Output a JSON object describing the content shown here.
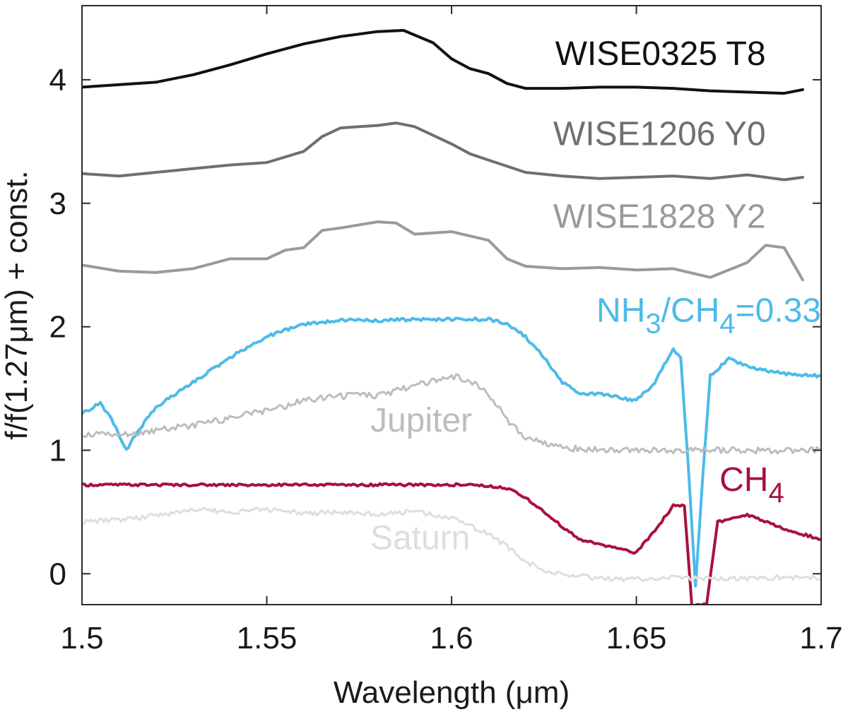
{
  "chart_data": {
    "type": "line",
    "xlabel": "Wavelength (μm)",
    "ylabel": "f/f(1.27μm) + const.",
    "xlim": [
      1.5,
      1.7
    ],
    "ylim": [
      -0.25,
      4.6
    ],
    "x_ticks": [
      1.5,
      1.55,
      1.6,
      1.65,
      1.7
    ],
    "x_tick_labels": [
      "1.5",
      "1.55",
      "1.6",
      "1.65",
      "1.7"
    ],
    "y_ticks": [
      0,
      1,
      2,
      3,
      4
    ],
    "y_tick_labels": [
      "0",
      "1",
      "2",
      "3",
      "4"
    ],
    "grid": false,
    "series": [
      {
        "name": "WISE0325 T8",
        "label_parts": [
          {
            "text": "WISE0325 T8"
          }
        ],
        "label_anchor": [
          1.685,
          4.12
        ],
        "color": "#111111",
        "x": [
          1.5,
          1.51,
          1.52,
          1.53,
          1.54,
          1.55,
          1.56,
          1.57,
          1.58,
          1.587,
          1.595,
          1.6,
          1.605,
          1.61,
          1.615,
          1.62,
          1.63,
          1.64,
          1.65,
          1.66,
          1.67,
          1.68,
          1.69,
          1.695
        ],
        "y": [
          3.94,
          3.96,
          3.98,
          4.04,
          4.12,
          4.21,
          4.29,
          4.35,
          4.39,
          4.4,
          4.3,
          4.17,
          4.09,
          4.05,
          3.97,
          3.93,
          3.93,
          3.94,
          3.94,
          3.93,
          3.91,
          3.9,
          3.89,
          3.92
        ]
      },
      {
        "name": "WISE1206 Y0",
        "label_parts": [
          {
            "text": "WISE1206 Y0"
          }
        ],
        "label_anchor": [
          1.685,
          3.47
        ],
        "color": "#6f6f6f",
        "x": [
          1.5,
          1.51,
          1.52,
          1.53,
          1.54,
          1.55,
          1.56,
          1.565,
          1.57,
          1.58,
          1.585,
          1.59,
          1.6,
          1.605,
          1.61,
          1.62,
          1.63,
          1.64,
          1.65,
          1.66,
          1.67,
          1.68,
          1.69,
          1.695
        ],
        "y": [
          3.24,
          3.22,
          3.25,
          3.28,
          3.31,
          3.33,
          3.42,
          3.54,
          3.61,
          3.63,
          3.65,
          3.62,
          3.48,
          3.4,
          3.35,
          3.25,
          3.22,
          3.2,
          3.21,
          3.22,
          3.2,
          3.23,
          3.19,
          3.21
        ]
      },
      {
        "name": "WISE1828 Y2",
        "label_parts": [
          {
            "text": "WISE1828 Y2"
          }
        ],
        "label_anchor": [
          1.685,
          2.8
        ],
        "color": "#9a9a9a",
        "x": [
          1.5,
          1.51,
          1.52,
          1.53,
          1.54,
          1.55,
          1.555,
          1.56,
          1.565,
          1.57,
          1.58,
          1.585,
          1.59,
          1.6,
          1.61,
          1.615,
          1.62,
          1.63,
          1.64,
          1.65,
          1.66,
          1.67,
          1.68,
          1.685,
          1.69,
          1.695
        ],
        "y": [
          2.5,
          2.45,
          2.44,
          2.47,
          2.55,
          2.55,
          2.62,
          2.64,
          2.78,
          2.8,
          2.85,
          2.84,
          2.75,
          2.77,
          2.7,
          2.55,
          2.49,
          2.47,
          2.48,
          2.46,
          2.47,
          2.4,
          2.52,
          2.66,
          2.64,
          2.38
        ]
      },
      {
        "name": "NH3/CH4=0.33",
        "label_parts": [
          {
            "text": "NH"
          },
          {
            "text": "3",
            "sub": true
          },
          {
            "text": "/CH"
          },
          {
            "text": "4",
            "sub": true
          },
          {
            "text": "=0.33"
          }
        ],
        "label_anchor": [
          1.7,
          2.04
        ],
        "color": "#4dbbe8",
        "x": [
          1.5,
          1.505,
          1.508,
          1.512,
          1.515,
          1.52,
          1.53,
          1.54,
          1.55,
          1.56,
          1.57,
          1.58,
          1.59,
          1.6,
          1.61,
          1.615,
          1.62,
          1.625,
          1.63,
          1.635,
          1.64,
          1.65,
          1.655,
          1.66,
          1.662,
          1.664,
          1.666,
          1.668,
          1.67,
          1.675,
          1.68,
          1.69,
          1.7
        ],
        "y": [
          1.3,
          1.38,
          1.25,
          1.0,
          1.15,
          1.35,
          1.55,
          1.75,
          1.92,
          2.02,
          2.05,
          2.05,
          2.06,
          2.06,
          2.06,
          2.03,
          1.92,
          1.75,
          1.55,
          1.45,
          1.46,
          1.4,
          1.55,
          1.82,
          1.75,
          0.9,
          -0.1,
          0.8,
          1.6,
          1.74,
          1.68,
          1.62,
          1.6
        ]
      },
      {
        "name": "Jupiter",
        "label_parts": [
          {
            "text": "Jupiter"
          }
        ],
        "label_anchor": [
          1.578,
          1.15
        ],
        "color": "#bdbdbd",
        "x": [
          1.5,
          1.51,
          1.52,
          1.53,
          1.54,
          1.55,
          1.56,
          1.57,
          1.58,
          1.59,
          1.6,
          1.605,
          1.61,
          1.615,
          1.62,
          1.63,
          1.64,
          1.65,
          1.66,
          1.67,
          1.68,
          1.69,
          1.7
        ],
        "y": [
          1.13,
          1.12,
          1.16,
          1.2,
          1.26,
          1.32,
          1.4,
          1.44,
          1.44,
          1.52,
          1.6,
          1.56,
          1.45,
          1.25,
          1.1,
          1.02,
          1.0,
          1.0,
          1.0,
          1.0,
          1.0,
          1.0,
          1.0
        ]
      },
      {
        "name": "CH4",
        "label_parts": [
          {
            "text": "CH"
          },
          {
            "text": "4",
            "sub": true
          }
        ],
        "label_anchor": [
          1.69,
          0.67
        ],
        "color": "#a8123a",
        "x": [
          1.5,
          1.52,
          1.54,
          1.56,
          1.58,
          1.6,
          1.605,
          1.61,
          1.615,
          1.62,
          1.625,
          1.63,
          1.635,
          1.64,
          1.65,
          1.655,
          1.66,
          1.663,
          1.665,
          1.667,
          1.669,
          1.672,
          1.68,
          1.69,
          1.7
        ],
        "y": [
          0.72,
          0.72,
          0.72,
          0.72,
          0.72,
          0.72,
          0.72,
          0.71,
          0.69,
          0.62,
          0.5,
          0.38,
          0.27,
          0.24,
          0.17,
          0.35,
          0.55,
          0.55,
          -0.25,
          -0.25,
          -0.25,
          0.42,
          0.48,
          0.36,
          0.28
        ]
      },
      {
        "name": "Saturn",
        "label_parts": [
          {
            "text": "Saturn"
          }
        ],
        "label_anchor": [
          1.578,
          0.2
        ],
        "color": "#dedede",
        "x": [
          1.5,
          1.51,
          1.52,
          1.53,
          1.54,
          1.55,
          1.56,
          1.57,
          1.58,
          1.59,
          1.6,
          1.61,
          1.615,
          1.62,
          1.625,
          1.63,
          1.64,
          1.65,
          1.66,
          1.67,
          1.68,
          1.69,
          1.7
        ],
        "y": [
          0.42,
          0.44,
          0.47,
          0.52,
          0.5,
          0.52,
          0.49,
          0.5,
          0.48,
          0.5,
          0.45,
          0.32,
          0.22,
          0.1,
          0.03,
          0.0,
          -0.04,
          -0.04,
          -0.03,
          -0.04,
          -0.04,
          -0.03,
          -0.04
        ]
      }
    ]
  }
}
